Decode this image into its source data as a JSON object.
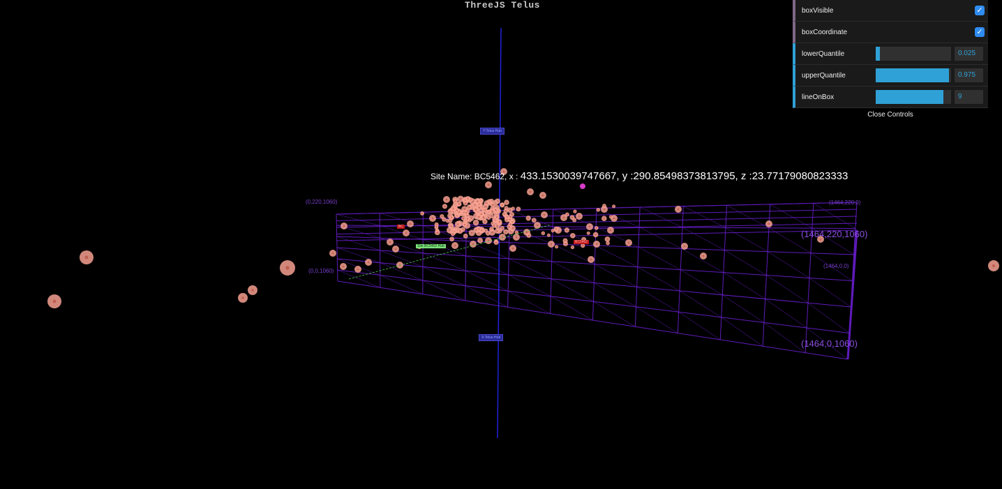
{
  "title": "ThreeJS Telus",
  "tooltip": {
    "prefix": "Site Name: BC5462, x :",
    "values": "433.1530039747667, y :290.85498373813795, z :23.77179080823333"
  },
  "box_labels": {
    "back_left_top": "(0,220,1060)",
    "back_right_top": "(1464,220,0)",
    "front_left_bottom": "(0,0,1060)",
    "right_top": "(1464,220,1060)",
    "right_mid": "(1464,0,0)",
    "right_bottom": "(1464,0,1060)"
  },
  "axis_tags": {
    "upper": "Y:Telus·Hub",
    "lower": "X:Telus·Hub"
  },
  "site_tags": {
    "green": "Site BC5462·Hub",
    "red_left": "BC",
    "red_right": "BC5462"
  },
  "gui": {
    "rows": [
      {
        "label": "boxVisible",
        "type": "bool",
        "checked": true
      },
      {
        "label": "boxCoordinate",
        "type": "bool",
        "checked": true
      },
      {
        "label": "lowerQuantile",
        "type": "number",
        "value": "0.025",
        "fraction": 0.025
      },
      {
        "label": "upperQuantile",
        "type": "number",
        "value": "0.975",
        "fraction": 0.975
      },
      {
        "label": "lineOnBox",
        "type": "number",
        "value": "9",
        "fraction": 0.9
      }
    ],
    "close_label": "Close Controls",
    "check_glyph": "✓"
  },
  "colors": {
    "box": "#6a1fd0",
    "axis": "#1f22d8",
    "points": "#f6a090",
    "highlight": "#d63cc8"
  }
}
